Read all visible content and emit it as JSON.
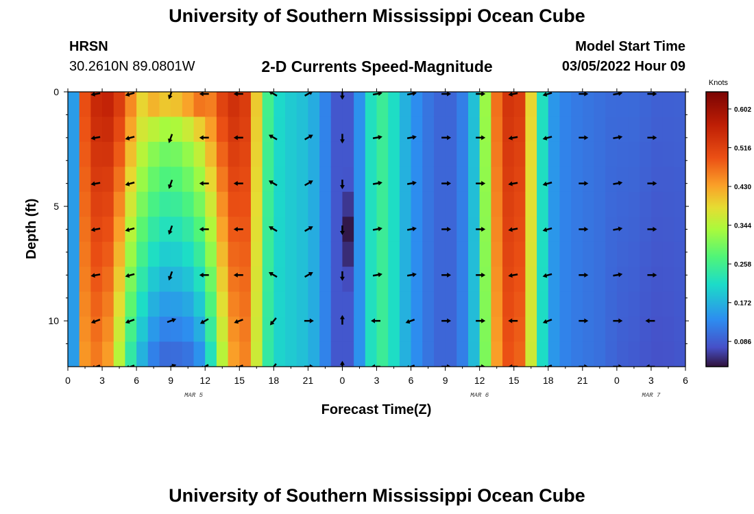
{
  "page": {
    "title": "University of Southern Mississippi Ocean Cube",
    "footer_title": "University of Southern Mississippi Ocean Cube",
    "station": "HRSN",
    "coords": "30.2610N  89.0801W",
    "subtitle": "2-D Currents Speed-Magnitude",
    "model_start_label": "Model Start Time",
    "model_start_value": "03/05/2022 Hour 09"
  },
  "chart_data": {
    "type": "heatmap",
    "title": "2-D Currents Speed-Magnitude",
    "xlabel": "Forecast Time(Z)",
    "ylabel": "Depth (ft)",
    "xlim": [
      0,
      54
    ],
    "ylim": [
      0,
      12
    ],
    "x_ticks": [
      {
        "value": 0,
        "label": "0"
      },
      {
        "value": 3,
        "label": "3"
      },
      {
        "value": 6,
        "label": "6"
      },
      {
        "value": 9,
        "label": "9"
      },
      {
        "value": 12,
        "label": "12"
      },
      {
        "value": 15,
        "label": "15"
      },
      {
        "value": 18,
        "label": "18"
      },
      {
        "value": 21,
        "label": "21"
      },
      {
        "value": 24,
        "label": "0"
      },
      {
        "value": 27,
        "label": "3"
      },
      {
        "value": 30,
        "label": "6"
      },
      {
        "value": 33,
        "label": "9"
      },
      {
        "value": 36,
        "label": "12"
      },
      {
        "value": 39,
        "label": "15"
      },
      {
        "value": 42,
        "label": "18"
      },
      {
        "value": 45,
        "label": "21"
      },
      {
        "value": 48,
        "label": "0"
      },
      {
        "value": 51,
        "label": "3"
      },
      {
        "value": 54,
        "label": "6"
      }
    ],
    "y_ticks": [
      {
        "value": 0,
        "label": "0"
      },
      {
        "value": 5,
        "label": "5"
      },
      {
        "value": 10,
        "label": "10"
      }
    ],
    "date_labels": [
      {
        "value": 11,
        "label": "MAR 5"
      },
      {
        "value": 36,
        "label": "MAR 6"
      },
      {
        "value": 51,
        "label": "MAR 7"
      }
    ],
    "colorbar": {
      "title": "Knots",
      "min": 0.03,
      "max": 0.64,
      "ticks": [
        0.086,
        0.172,
        0.258,
        0.344,
        0.43,
        0.516,
        0.602
      ],
      "tick_labels": [
        "0.086",
        "0.172",
        "0.258",
        "0.344",
        "0.430",
        "0.516",
        "0.602"
      ]
    },
    "time_profile": {
      "t": [
        0,
        0.5,
        1,
        2,
        3,
        4,
        5,
        6,
        7,
        8,
        9,
        10,
        11,
        12,
        13,
        14,
        15,
        16,
        17,
        18,
        19,
        20,
        21,
        22,
        23,
        24,
        25,
        26,
        27,
        28,
        29,
        30,
        31,
        32,
        33,
        34,
        35,
        36,
        37,
        38,
        39,
        40,
        41,
        42,
        43,
        44,
        45,
        46,
        47,
        48,
        49,
        50,
        51,
        52,
        53,
        54
      ],
      "surface_speed": [
        0.08,
        0.15,
        0.46,
        0.54,
        0.57,
        0.56,
        0.5,
        0.42,
        0.38,
        0.36,
        0.35,
        0.37,
        0.4,
        0.44,
        0.5,
        0.54,
        0.55,
        0.5,
        0.3,
        0.22,
        0.2,
        0.19,
        0.18,
        0.15,
        0.1,
        0.06,
        0.1,
        0.18,
        0.26,
        0.24,
        0.19,
        0.15,
        0.12,
        0.1,
        0.09,
        0.1,
        0.14,
        0.23,
        0.42,
        0.52,
        0.55,
        0.5,
        0.28,
        0.16,
        0.13,
        0.12,
        0.11,
        0.11,
        0.1,
        0.1,
        0.1,
        0.1,
        0.09,
        0.09,
        0.09,
        0.09
      ],
      "bottom_factor": [
        1,
        1,
        0.9,
        0.85,
        0.8,
        0.72,
        0.55,
        0.45,
        0.35,
        0.25,
        0.25,
        0.25,
        0.25,
        0.35,
        0.55,
        0.75,
        0.82,
        0.9,
        0.9,
        0.95,
        1,
        1,
        1,
        1,
        1,
        1,
        1,
        1,
        1,
        1,
        1,
        1,
        1,
        1,
        1,
        1,
        1,
        0.95,
        0.92,
        0.92,
        0.92,
        0.9,
        0.95,
        1,
        1,
        1,
        1,
        1,
        1,
        0.9,
        0.85,
        0.82,
        0.82,
        0.82,
        0.85,
        0.9
      ]
    },
    "vectors": {
      "times": [
        2.5,
        5.5,
        9,
        12,
        15,
        18,
        21,
        24,
        27,
        30,
        33,
        36,
        39,
        42,
        45,
        48,
        51
      ],
      "depths": [
        0,
        2,
        4,
        6,
        8,
        10,
        12
      ],
      "angles_deg": [
        190,
        195,
        250,
        180,
        180,
        150,
        30,
        270,
        10,
        10,
        0,
        0,
        190,
        195,
        0,
        10,
        0
      ],
      "bottom_angles_deg": [
        200,
        200,
        20,
        210,
        200,
        230,
        0,
        90,
        180,
        200,
        0,
        0,
        180,
        200,
        0,
        0,
        180
      ]
    }
  }
}
